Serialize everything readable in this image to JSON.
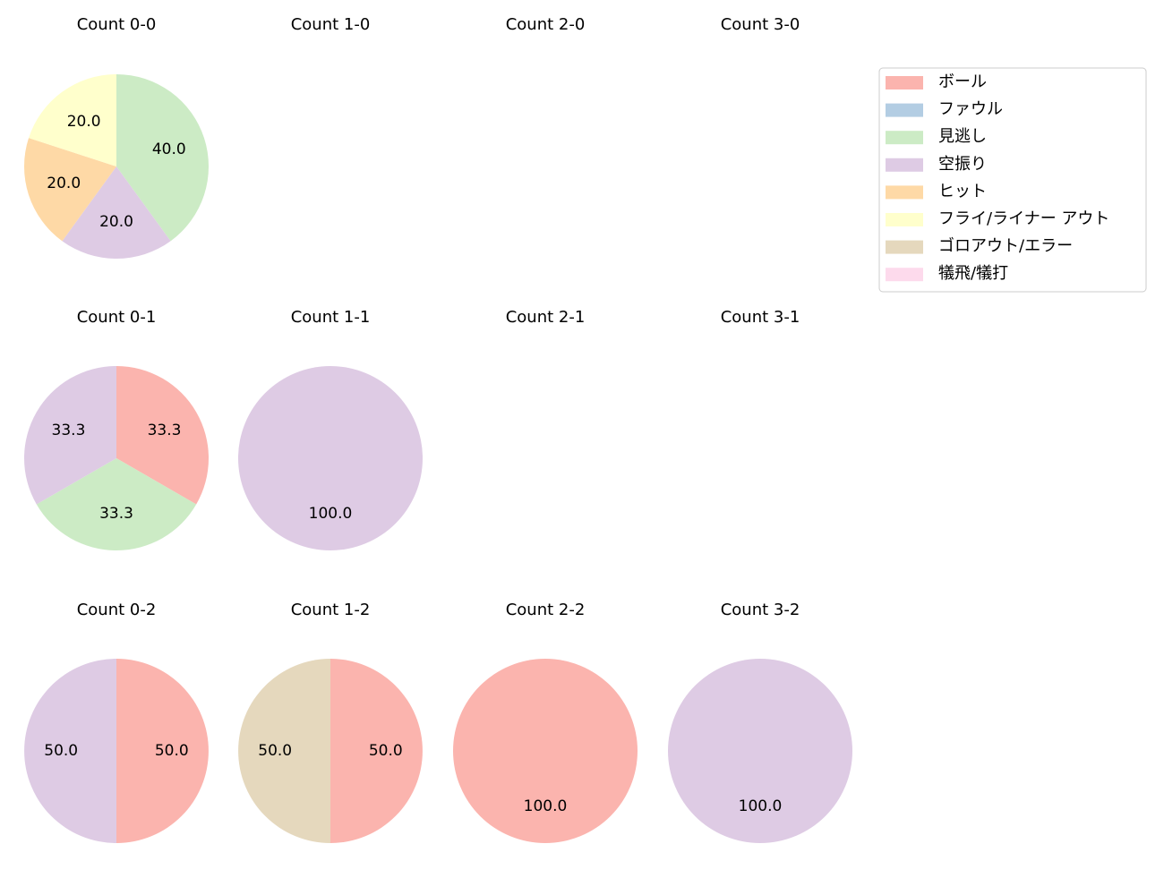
{
  "chart_data": [
    {
      "type": "pie",
      "title": "Count 0-0",
      "categories": [
        "見逃し",
        "空振り",
        "ヒット",
        "フライ/ライナー アウト"
      ],
      "values": [
        40,
        20,
        20,
        20
      ],
      "value_labels": [
        "40.0",
        "20.0",
        "20.0",
        "20.0"
      ],
      "colors": [
        "#ccebc5",
        "#decbe4",
        "#fed9a6",
        "#ffffcc"
      ]
    },
    {
      "type": "pie",
      "title": "Count 1-0",
      "categories": [],
      "values": [],
      "value_labels": [],
      "colors": []
    },
    {
      "type": "pie",
      "title": "Count 2-0",
      "categories": [],
      "values": [],
      "value_labels": [],
      "colors": []
    },
    {
      "type": "pie",
      "title": "Count 3-0",
      "categories": [],
      "values": [],
      "value_labels": [],
      "colors": []
    },
    {
      "type": "pie",
      "title": "Count 0-1",
      "categories": [
        "ボール",
        "見逃し",
        "空振り"
      ],
      "values": [
        33.3,
        33.3,
        33.3
      ],
      "value_labels": [
        "33.3",
        "33.3",
        "33.3"
      ],
      "colors": [
        "#fbb4ae",
        "#ccebc5",
        "#decbe4"
      ]
    },
    {
      "type": "pie",
      "title": "Count 1-1",
      "categories": [
        "空振り"
      ],
      "values": [
        100
      ],
      "value_labels": [
        "100.0"
      ],
      "colors": [
        "#decbe4"
      ]
    },
    {
      "type": "pie",
      "title": "Count 2-1",
      "categories": [],
      "values": [],
      "value_labels": [],
      "colors": []
    },
    {
      "type": "pie",
      "title": "Count 3-1",
      "categories": [],
      "values": [],
      "value_labels": [],
      "colors": []
    },
    {
      "type": "pie",
      "title": "Count 0-2",
      "categories": [
        "ボール",
        "空振り"
      ],
      "values": [
        50,
        50
      ],
      "value_labels": [
        "50.0",
        "50.0"
      ],
      "colors": [
        "#fbb4ae",
        "#decbe4"
      ]
    },
    {
      "type": "pie",
      "title": "Count 1-2",
      "categories": [
        "ボール",
        "ゴロアウト/エラー"
      ],
      "values": [
        50,
        50
      ],
      "value_labels": [
        "50.0",
        "50.0"
      ],
      "colors": [
        "#fbb4ae",
        "#e5d8bd"
      ]
    },
    {
      "type": "pie",
      "title": "Count 2-2",
      "categories": [
        "ボール"
      ],
      "values": [
        100
      ],
      "value_labels": [
        "100.0"
      ],
      "colors": [
        "#fbb4ae"
      ]
    },
    {
      "type": "pie",
      "title": "Count 3-2",
      "categories": [
        "空振り"
      ],
      "values": [
        100
      ],
      "value_labels": [
        "100.0"
      ],
      "colors": [
        "#decbe4"
      ]
    }
  ],
  "legend": {
    "labels": [
      "ボール",
      "ファウル",
      "見逃し",
      "空振り",
      "ヒット",
      "フライ/ライナー アウト",
      "ゴロアウト/エラー",
      "犠飛/犠打"
    ],
    "colors": [
      "#fbb4ae",
      "#b3cde3",
      "#ccebc5",
      "#decbe4",
      "#fed9a6",
      "#ffffcc",
      "#e5d8bd",
      "#fddaec"
    ]
  }
}
